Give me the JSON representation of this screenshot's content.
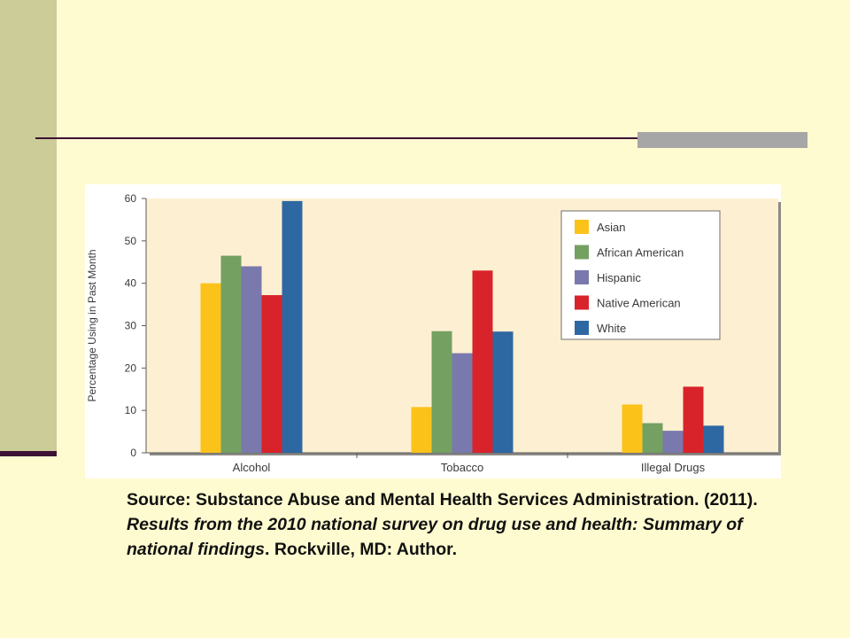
{
  "slide": {
    "colors": {
      "background": "#fffbd0",
      "side_bar": "#cccc99",
      "rule": "#3d1235",
      "rule_accent": "#a6a6a6"
    }
  },
  "chart_data": {
    "type": "bar",
    "title": "",
    "xlabel": "",
    "ylabel": "Percentage Using in Past Month",
    "categories": [
      "Alcohol",
      "Tobacco",
      "Illegal Drugs"
    ],
    "ylim": [
      0,
      60
    ],
    "yticks": [
      0,
      10,
      20,
      30,
      40,
      50,
      60
    ],
    "grid": false,
    "legend_position": "top-right",
    "plot_background": "#fdf0d2",
    "series": [
      {
        "name": "Asian",
        "color": "#fbc21a",
        "values": [
          40,
          10.8,
          11.4
        ]
      },
      {
        "name": "African American",
        "color": "#74a062",
        "values": [
          46.5,
          28.7,
          7
        ]
      },
      {
        "name": "Hispanic",
        "color": "#7a79ad",
        "values": [
          44,
          23.5,
          5.2
        ]
      },
      {
        "name": "Native American",
        "color": "#d8232a",
        "values": [
          37.2,
          43,
          15.6
        ]
      },
      {
        "name": "White",
        "color": "#2e68a3",
        "values": [
          59.4,
          28.6,
          6.4
        ]
      }
    ]
  },
  "source": {
    "text_1": "Source: Substance Abuse and Mental Health Services Administration. (2011). ",
    "italic": "Results from the 2010 national survey on drug use and health: Summary of national findings",
    "text_2": ". Rockville, MD: Author."
  }
}
